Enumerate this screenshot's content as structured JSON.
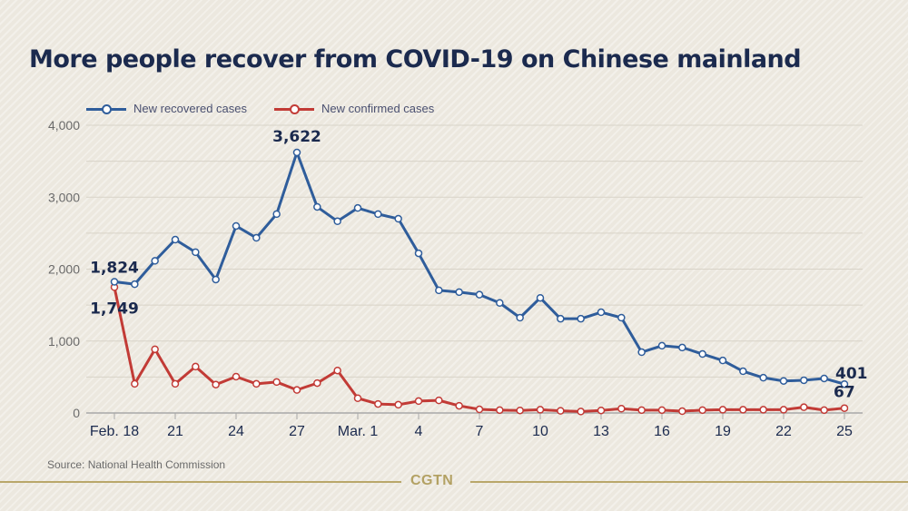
{
  "chart_data": {
    "type": "line",
    "title": "More people recover from COVID-19 on Chinese mainland",
    "xlabel": "",
    "ylabel": "",
    "ylim": [
      0,
      4000
    ],
    "yticks": [
      0,
      1000,
      2000,
      3000,
      4000
    ],
    "ytick_labels": [
      "0",
      "1,000",
      "2,000",
      "3,000",
      "4,000"
    ],
    "grid": true,
    "legend_position": "top-left",
    "x": [
      "Feb. 18",
      "Feb. 19",
      "Feb. 20",
      "Feb. 21",
      "Feb. 22",
      "Feb. 23",
      "Feb. 24",
      "Feb. 25",
      "Feb. 26",
      "Feb. 27",
      "Feb. 28",
      "Feb. 29",
      "Mar. 1",
      "Mar. 2",
      "Mar. 3",
      "Mar. 4",
      "Mar. 5",
      "Mar. 6",
      "Mar. 7",
      "Mar. 8",
      "Mar. 9",
      "Mar. 10",
      "Mar. 11",
      "Mar. 12",
      "Mar. 13",
      "Mar. 14",
      "Mar. 15",
      "Mar. 16",
      "Mar. 17",
      "Mar. 18",
      "Mar. 19",
      "Mar. 20",
      "Mar. 21",
      "Mar. 22",
      "Mar. 23",
      "Mar. 24",
      "Mar. 25"
    ],
    "xticks": [
      {
        "index": 0,
        "label": "Feb. 18"
      },
      {
        "index": 3,
        "label": "21"
      },
      {
        "index": 6,
        "label": "24"
      },
      {
        "index": 9,
        "label": "27"
      },
      {
        "index": 12,
        "label": "Mar. 1"
      },
      {
        "index": 15,
        "label": "4"
      },
      {
        "index": 18,
        "label": "7"
      },
      {
        "index": 21,
        "label": "10"
      },
      {
        "index": 24,
        "label": "13"
      },
      {
        "index": 27,
        "label": "16"
      },
      {
        "index": 30,
        "label": "19"
      },
      {
        "index": 33,
        "label": "22"
      },
      {
        "index": 36,
        "label": "25"
      }
    ],
    "series": [
      {
        "name": "New recovered cases",
        "color": "#2f5d9b",
        "values": [
          1824,
          1790,
          2115,
          2410,
          2235,
          1855,
          2600,
          2435,
          2765,
          3622,
          2865,
          2665,
          2850,
          2765,
          2700,
          2220,
          1705,
          1680,
          1645,
          1530,
          1325,
          1600,
          1310,
          1310,
          1400,
          1325,
          845,
          935,
          910,
          820,
          730,
          580,
          490,
          445,
          455,
          480,
          401
        ]
      },
      {
        "name": "New confirmed cases",
        "color": "#c23b36",
        "values": [
          1749,
          405,
          885,
          405,
          645,
          395,
          505,
          405,
          430,
          320,
          415,
          590,
          205,
          125,
          115,
          165,
          175,
          100,
          50,
          40,
          35,
          45,
          30,
          20,
          35,
          60,
          40,
          40,
          25,
          40,
          45,
          45,
          45,
          45,
          80,
          40,
          67
        ]
      }
    ],
    "annotations": [
      {
        "series": 0,
        "index": 0,
        "text": "1,824"
      },
      {
        "series": 1,
        "index": 0,
        "text": "1,749"
      },
      {
        "series": 0,
        "index": 9,
        "text": "3,622"
      },
      {
        "series": 0,
        "index": 36,
        "text": "401"
      },
      {
        "series": 1,
        "index": 36,
        "text": "67"
      }
    ],
    "source": "Source: National Health Commission"
  },
  "header": {
    "title": "More people recover from COVID-19 on Chinese mainland"
  },
  "legend": {
    "items": [
      {
        "label": "New recovered cases",
        "color": "#2f5d9b"
      },
      {
        "label": "New confirmed cases",
        "color": "#c23b36"
      }
    ]
  },
  "footer": {
    "source": "Source: National Health Commission",
    "brand": "CGTN"
  },
  "colors": {
    "title": "#1b2a4e",
    "brand": "#b3a163",
    "background": "#ece8df"
  }
}
